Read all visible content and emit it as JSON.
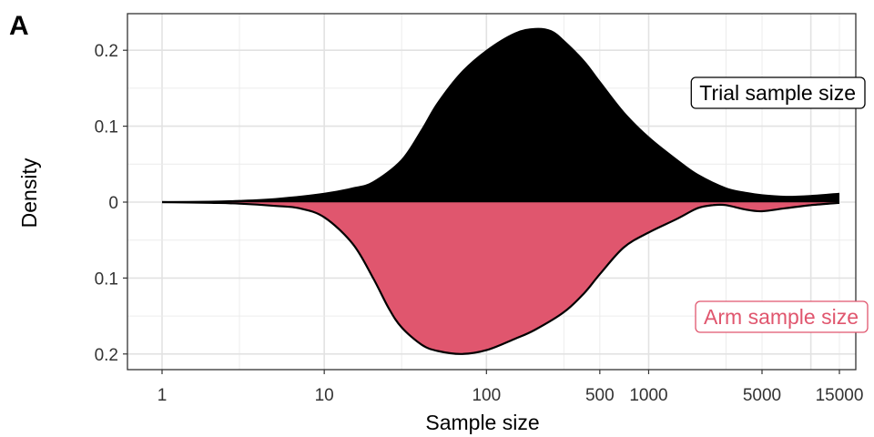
{
  "panel_label": "A",
  "chart_data": {
    "type": "area",
    "layout": "mirrored-density",
    "xlabel": "Sample size",
    "ylabel": "Density",
    "x_scale": "log10",
    "xlim": [
      1,
      15000
    ],
    "ylim": [
      -0.21,
      0.235
    ],
    "x_ticks": [
      1,
      10,
      100,
      500,
      1000,
      5000,
      15000
    ],
    "x_tick_labels": [
      "1",
      "10",
      "100",
      "500",
      "1000",
      "5000",
      "15000"
    ],
    "y_ticks": [
      0.2,
      0.1,
      0,
      -0.1,
      -0.2
    ],
    "y_tick_labels": [
      "0.2",
      "0.1",
      "0",
      "0.1",
      "0.2"
    ],
    "grid": true,
    "series": [
      {
        "name": "Trial sample size",
        "direction": "up",
        "fill": "#000000",
        "label_box": {
          "text": "Trial sample size",
          "color": "#000000"
        },
        "x": [
          1,
          2,
          3,
          5,
          10,
          15,
          20,
          30,
          40,
          50,
          70,
          100,
          150,
          200,
          250,
          300,
          400,
          500,
          700,
          1000,
          1500,
          2000,
          3000,
          4000,
          5000,
          7000,
          10000,
          15000
        ],
        "values": [
          0,
          0.0005,
          0.0015,
          0.004,
          0.011,
          0.018,
          0.026,
          0.055,
          0.095,
          0.13,
          0.17,
          0.199,
          0.222,
          0.228,
          0.225,
          0.212,
          0.185,
          0.158,
          0.118,
          0.085,
          0.055,
          0.036,
          0.018,
          0.012,
          0.009,
          0.007,
          0.008,
          0.011
        ]
      },
      {
        "name": "Arm sample size",
        "direction": "down",
        "fill": "#e0566e",
        "label_box": {
          "text": "Arm sample size",
          "color": "#e0566e"
        },
        "x": [
          1,
          2,
          3,
          5,
          7,
          10,
          15,
          20,
          25,
          30,
          40,
          50,
          70,
          100,
          150,
          200,
          300,
          400,
          500,
          700,
          1000,
          1500,
          2000,
          2500,
          3000,
          4000,
          5000,
          7000,
          10000,
          15000
        ],
        "values": [
          0,
          0.001,
          0.002,
          0.005,
          0.008,
          0.02,
          0.055,
          0.1,
          0.14,
          0.165,
          0.188,
          0.196,
          0.2,
          0.195,
          0.18,
          0.168,
          0.145,
          0.12,
          0.095,
          0.06,
          0.04,
          0.022,
          0.008,
          0.004,
          0.004,
          0.01,
          0.012,
          0.008,
          0.004,
          0.001
        ]
      }
    ]
  }
}
